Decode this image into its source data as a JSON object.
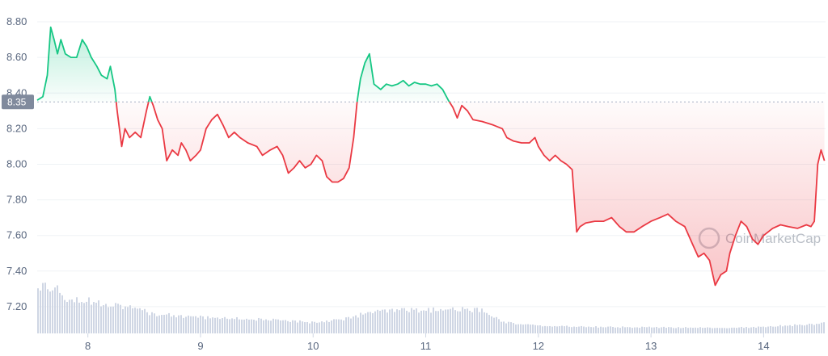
{
  "chart_data": {
    "type": "line",
    "title": "",
    "xlabel": "",
    "ylabel": "",
    "baseline": 8.35,
    "baseline_label": "8.35",
    "ylim": [
      7.05,
      8.85
    ],
    "xlim": [
      7.55,
      14.55
    ],
    "y_ticks": [
      {
        "value": 8.8,
        "label": "8.80"
      },
      {
        "value": 8.6,
        "label": "8.60"
      },
      {
        "value": 8.4,
        "label": "8.40"
      },
      {
        "value": 8.2,
        "label": "8.20"
      },
      {
        "value": 8.0,
        "label": "8.00"
      },
      {
        "value": 7.8,
        "label": "7.80"
      },
      {
        "value": 7.6,
        "label": "7.60"
      },
      {
        "value": 7.4,
        "label": "7.40"
      },
      {
        "value": 7.2,
        "label": "7.20"
      }
    ],
    "x_ticks": [
      {
        "value": 8,
        "label": "8"
      },
      {
        "value": 9,
        "label": "9"
      },
      {
        "value": 10,
        "label": "10"
      },
      {
        "value": 11,
        "label": "11"
      },
      {
        "value": 12,
        "label": "12"
      },
      {
        "value": 13,
        "label": "13"
      },
      {
        "value": 14,
        "label": "14"
      }
    ],
    "colors": {
      "up": "#16c784",
      "down": "#ea3943",
      "volume": "#cfd6e4",
      "baseline": "#a6b0c3"
    },
    "series": [
      {
        "points": [
          [
            7.55,
            8.36
          ],
          [
            7.6,
            8.38
          ],
          [
            7.64,
            8.5
          ],
          [
            7.67,
            8.77
          ],
          [
            7.7,
            8.7
          ],
          [
            7.73,
            8.62
          ],
          [
            7.76,
            8.7
          ],
          [
            7.8,
            8.62
          ],
          [
            7.85,
            8.6
          ],
          [
            7.9,
            8.6
          ],
          [
            7.95,
            8.7
          ],
          [
            7.99,
            8.66
          ],
          [
            8.03,
            8.6
          ],
          [
            8.08,
            8.55
          ],
          [
            8.12,
            8.5
          ],
          [
            8.17,
            8.48
          ],
          [
            8.2,
            8.55
          ],
          [
            8.24,
            8.42
          ],
          [
            8.26,
            8.3
          ],
          [
            8.28,
            8.2
          ],
          [
            8.3,
            8.1
          ],
          [
            8.33,
            8.2
          ],
          [
            8.37,
            8.15
          ],
          [
            8.42,
            8.18
          ],
          [
            8.47,
            8.15
          ],
          [
            8.52,
            8.3
          ],
          [
            8.55,
            8.38
          ],
          [
            8.58,
            8.33
          ],
          [
            8.62,
            8.25
          ],
          [
            8.66,
            8.2
          ],
          [
            8.7,
            8.02
          ],
          [
            8.75,
            8.08
          ],
          [
            8.8,
            8.05
          ],
          [
            8.83,
            8.12
          ],
          [
            8.87,
            8.08
          ],
          [
            8.91,
            8.02
          ],
          [
            8.96,
            8.05
          ],
          [
            9.0,
            8.08
          ],
          [
            9.05,
            8.2
          ],
          [
            9.1,
            8.25
          ],
          [
            9.15,
            8.28
          ],
          [
            9.2,
            8.22
          ],
          [
            9.25,
            8.15
          ],
          [
            9.3,
            8.18
          ],
          [
            9.35,
            8.15
          ],
          [
            9.42,
            8.12
          ],
          [
            9.5,
            8.1
          ],
          [
            9.55,
            8.05
          ],
          [
            9.62,
            8.08
          ],
          [
            9.68,
            8.1
          ],
          [
            9.73,
            8.05
          ],
          [
            9.78,
            7.95
          ],
          [
            9.83,
            7.98
          ],
          [
            9.88,
            8.02
          ],
          [
            9.93,
            7.98
          ],
          [
            9.98,
            8.0
          ],
          [
            10.03,
            8.05
          ],
          [
            10.08,
            8.02
          ],
          [
            10.12,
            7.93
          ],
          [
            10.17,
            7.9
          ],
          [
            10.22,
            7.9
          ],
          [
            10.27,
            7.92
          ],
          [
            10.32,
            7.98
          ],
          [
            10.36,
            8.15
          ],
          [
            10.39,
            8.35
          ],
          [
            10.42,
            8.48
          ],
          [
            10.46,
            8.57
          ],
          [
            10.5,
            8.62
          ],
          [
            10.54,
            8.45
          ],
          [
            10.6,
            8.42
          ],
          [
            10.65,
            8.45
          ],
          [
            10.7,
            8.44
          ],
          [
            10.75,
            8.45
          ],
          [
            10.8,
            8.47
          ],
          [
            10.85,
            8.44
          ],
          [
            10.9,
            8.46
          ],
          [
            10.95,
            8.45
          ],
          [
            11.0,
            8.45
          ],
          [
            11.05,
            8.44
          ],
          [
            11.1,
            8.45
          ],
          [
            11.15,
            8.42
          ],
          [
            11.2,
            8.36
          ],
          [
            11.24,
            8.32
          ],
          [
            11.28,
            8.26
          ],
          [
            11.32,
            8.33
          ],
          [
            11.37,
            8.3
          ],
          [
            11.42,
            8.25
          ],
          [
            11.5,
            8.24
          ],
          [
            11.6,
            8.22
          ],
          [
            11.68,
            8.2
          ],
          [
            11.72,
            8.15
          ],
          [
            11.78,
            8.13
          ],
          [
            11.85,
            8.12
          ],
          [
            11.92,
            8.12
          ],
          [
            11.97,
            8.15
          ],
          [
            12.0,
            8.1
          ],
          [
            12.05,
            8.05
          ],
          [
            12.1,
            8.02
          ],
          [
            12.15,
            8.05
          ],
          [
            12.2,
            8.02
          ],
          [
            12.25,
            8.0
          ],
          [
            12.3,
            7.97
          ],
          [
            12.34,
            7.62
          ],
          [
            12.37,
            7.65
          ],
          [
            12.42,
            7.67
          ],
          [
            12.5,
            7.68
          ],
          [
            12.58,
            7.68
          ],
          [
            12.65,
            7.7
          ],
          [
            12.72,
            7.65
          ],
          [
            12.78,
            7.62
          ],
          [
            12.85,
            7.62
          ],
          [
            12.92,
            7.65
          ],
          [
            13.0,
            7.68
          ],
          [
            13.08,
            7.7
          ],
          [
            13.15,
            7.72
          ],
          [
            13.22,
            7.68
          ],
          [
            13.3,
            7.65
          ],
          [
            13.37,
            7.55
          ],
          [
            13.42,
            7.48
          ],
          [
            13.47,
            7.5
          ],
          [
            13.52,
            7.46
          ],
          [
            13.57,
            7.32
          ],
          [
            13.62,
            7.38
          ],
          [
            13.67,
            7.4
          ],
          [
            13.7,
            7.5
          ],
          [
            13.75,
            7.6
          ],
          [
            13.8,
            7.68
          ],
          [
            13.85,
            7.65
          ],
          [
            13.9,
            7.58
          ],
          [
            13.95,
            7.55
          ],
          [
            14.0,
            7.6
          ],
          [
            14.08,
            7.64
          ],
          [
            14.15,
            7.66
          ],
          [
            14.22,
            7.65
          ],
          [
            14.3,
            7.64
          ],
          [
            14.38,
            7.66
          ],
          [
            14.42,
            7.65
          ],
          [
            14.45,
            7.68
          ],
          [
            14.48,
            8.0
          ],
          [
            14.51,
            8.08
          ],
          [
            14.54,
            8.02
          ]
        ]
      }
    ],
    "volume": {
      "x": [
        7.55,
        7.65,
        7.72,
        7.8,
        8.0,
        8.3,
        8.6,
        9.0,
        9.5,
        10.0,
        10.3,
        10.5,
        10.7,
        11.0,
        11.3,
        11.5,
        11.7,
        12.0,
        12.5,
        13.0,
        13.5,
        13.9,
        14.2,
        14.45,
        14.55
      ],
      "values": [
        0.95,
        0.92,
        1.0,
        0.7,
        0.65,
        0.55,
        0.38,
        0.32,
        0.28,
        0.22,
        0.3,
        0.42,
        0.45,
        0.46,
        0.48,
        0.45,
        0.22,
        0.15,
        0.13,
        0.12,
        0.11,
        0.12,
        0.16,
        0.18,
        0.25
      ]
    }
  },
  "watermark": {
    "text": "CoinMarketCap"
  }
}
